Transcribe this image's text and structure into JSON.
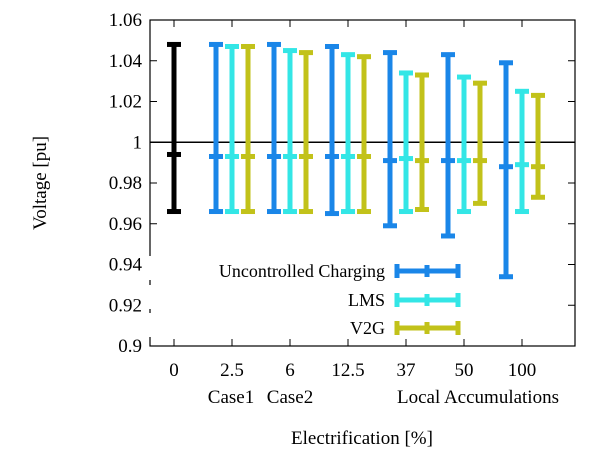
{
  "chart_data": {
    "type": "errorbar",
    "xlabel": "Electrification [%]",
    "ylabel": "Voltage [pu]",
    "ylim": [
      0.9,
      1.06
    ],
    "yticks": [
      0.9,
      0.92,
      0.94,
      0.96,
      0.98,
      1,
      1.02,
      1.04,
      1.06
    ],
    "ytick_labels": [
      "0.9",
      "0.92",
      "0.94",
      "0.96",
      "0.98",
      "1",
      "1.02",
      "1.04",
      "1.06"
    ],
    "categories": [
      "0",
      "2.5",
      "6",
      "12.5",
      "37",
      "50",
      "100"
    ],
    "group_labels": [
      "Case1",
      "Case2",
      "Local Accumulations"
    ],
    "reference_line": 1,
    "grid": false,
    "legend_position": "bottom-left",
    "baseline": {
      "color": "#000000",
      "values": [
        {
          "min": 0.966,
          "mid": 0.994,
          "max": 1.048
        }
      ]
    },
    "series": [
      {
        "name": "Uncontrolled Charging",
        "color": "#1a86e8",
        "values": [
          {
            "min": 0.966,
            "mid": 0.993,
            "max": 1.048
          },
          {
            "min": 0.966,
            "mid": 0.993,
            "max": 1.048
          },
          {
            "min": 0.965,
            "mid": 0.993,
            "max": 1.047
          },
          {
            "min": 0.959,
            "mid": 0.991,
            "max": 1.044
          },
          {
            "min": 0.954,
            "mid": 0.991,
            "max": 1.043
          },
          {
            "min": 0.934,
            "mid": 0.988,
            "max": 1.039
          }
        ]
      },
      {
        "name": "LMS",
        "color": "#33e6e6",
        "values": [
          {
            "min": 0.966,
            "mid": 0.993,
            "max": 1.047
          },
          {
            "min": 0.966,
            "mid": 0.993,
            "max": 1.045
          },
          {
            "min": 0.966,
            "mid": 0.993,
            "max": 1.043
          },
          {
            "min": 0.966,
            "mid": 0.992,
            "max": 1.034
          },
          {
            "min": 0.966,
            "mid": 0.991,
            "max": 1.032
          },
          {
            "min": 0.966,
            "mid": 0.989,
            "max": 1.025
          }
        ]
      },
      {
        "name": "V2G",
        "color": "#c2c21a",
        "values": [
          {
            "min": 0.966,
            "mid": 0.993,
            "max": 1.047
          },
          {
            "min": 0.966,
            "mid": 0.993,
            "max": 1.044
          },
          {
            "min": 0.966,
            "mid": 0.993,
            "max": 1.042
          },
          {
            "min": 0.967,
            "mid": 0.991,
            "max": 1.033
          },
          {
            "min": 0.97,
            "mid": 0.991,
            "max": 1.029
          },
          {
            "min": 0.973,
            "mid": 0.988,
            "max": 1.023
          }
        ]
      }
    ]
  }
}
